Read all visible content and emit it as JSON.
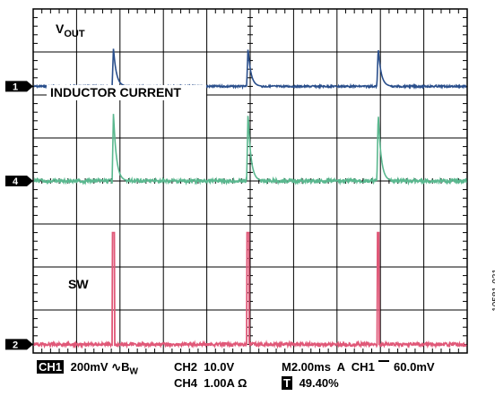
{
  "chart_data": {
    "type": "line",
    "title": "",
    "grid": "on",
    "divisions": {
      "x": 10,
      "y": 8
    },
    "series": [
      {
        "name": "VOUT",
        "channel_marker": "1",
        "color": "#2a4f8c",
        "label_main": "V",
        "label_sub": "OUT",
        "baseline_div": 1.8,
        "spike_div": 0.9,
        "spikes_div": [
          1.85,
          4.95,
          7.95
        ]
      },
      {
        "name": "INDUCTOR CURRENT",
        "channel_marker": "4",
        "color": "#5ab88f",
        "label_main": "INDUCTOR CURRENT",
        "label_sub": "",
        "baseline_div": 4.0,
        "spike_div": 1.6,
        "spikes_div": [
          1.85,
          4.95,
          7.95
        ]
      },
      {
        "name": "SW",
        "channel_marker": "2",
        "color": "#e05878",
        "label_main": "SW",
        "label_sub": "",
        "baseline_div": 7.8,
        "spike_div": 2.6,
        "spikes_div": [
          1.85,
          4.95,
          7.95
        ]
      }
    ]
  },
  "status": {
    "ch1_badge": "CH1",
    "ch1_scale": "200mV",
    "bw_symbol": "∿B",
    "bw_sub": "W",
    "ch2": "CH2  10.0V",
    "ch4": "CH4  1.00A Ω",
    "timebase": "M2.00ms  A  CH1",
    "trigger_level": "60.0mV",
    "trigger_badge": "T",
    "trigger_position": "49.40%"
  },
  "figure_id": "10581-031"
}
